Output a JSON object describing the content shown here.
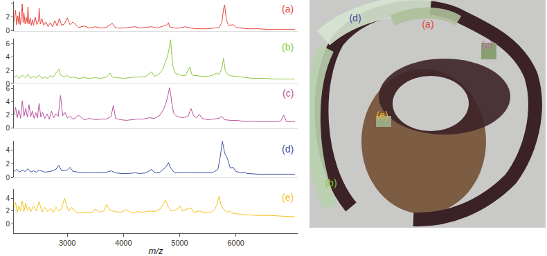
{
  "chart_data": [
    {
      "type": "line",
      "title": "(a)",
      "color": "#e8413c",
      "tick_labels": "y",
      "grid": false,
      "xlim": [
        2050,
        7100
      ],
      "ylim": [
        0,
        4.3
      ],
      "yticks": [
        0,
        2,
        4
      ],
      "x": [
        2050,
        2080,
        2100,
        2120,
        2140,
        2150,
        2165,
        2180,
        2200,
        2215,
        2230,
        2250,
        2270,
        2290,
        2300,
        2320,
        2340,
        2360,
        2380,
        2400,
        2430,
        2460,
        2490,
        2500,
        2520,
        2550,
        2580,
        2620,
        2660,
        2700,
        2740,
        2780,
        2820,
        2860,
        2900,
        2950,
        3000,
        3050,
        3100,
        3200,
        3300,
        3400,
        3500,
        3600,
        3700,
        3800,
        3850,
        3900,
        4000,
        4100,
        4200,
        4300,
        4400,
        4500,
        4600,
        4700,
        4780,
        4800,
        4820,
        4900,
        5000,
        5100,
        5200,
        5300,
        5400,
        5500,
        5600,
        5700,
        5750,
        5780,
        5800,
        5830,
        5870,
        5950,
        6000,
        6100,
        6200,
        6400,
        6600,
        6800,
        7000,
        7050
      ],
      "values": [
        1.2,
        3.0,
        0.9,
        2.2,
        1.0,
        2.8,
        0.9,
        1.8,
        3.9,
        1.2,
        2.6,
        1.0,
        2.0,
        1.1,
        3.5,
        1.0,
        1.9,
        0.8,
        1.6,
        0.8,
        2.0,
        0.9,
        1.5,
        3.3,
        1.0,
        1.8,
        0.8,
        1.3,
        0.6,
        1.2,
        0.6,
        1.5,
        0.7,
        1.8,
        0.8,
        1.0,
        1.9,
        0.9,
        1.3,
        0.5,
        0.7,
        0.4,
        0.6,
        0.4,
        0.5,
        1.1,
        0.5,
        0.4,
        0.4,
        0.5,
        0.6,
        0.4,
        0.5,
        0.6,
        0.4,
        0.7,
        0.9,
        1.2,
        0.6,
        0.4,
        0.4,
        0.6,
        0.4,
        0.3,
        0.3,
        0.3,
        0.4,
        0.5,
        1.2,
        3.2,
        3.8,
        1.6,
        0.8,
        0.9,
        0.5,
        0.4,
        0.3,
        0.3,
        0.2,
        0.2,
        0.2,
        0.2
      ]
    },
    {
      "type": "line",
      "title": "(b)",
      "color": "#8cc63f",
      "tick_labels": "y",
      "grid": false,
      "xlim": [
        2050,
        7100
      ],
      "ylim": [
        0,
        6.8
      ],
      "yticks": [
        0,
        2,
        4,
        6
      ],
      "x": [
        2050,
        2100,
        2150,
        2200,
        2250,
        2300,
        2350,
        2400,
        2450,
        2500,
        2550,
        2600,
        2650,
        2700,
        2750,
        2800,
        2850,
        2880,
        2920,
        2960,
        3000,
        3050,
        3100,
        3200,
        3300,
        3400,
        3500,
        3600,
        3700,
        3760,
        3800,
        3900,
        4000,
        4100,
        4200,
        4300,
        4400,
        4500,
        4550,
        4600,
        4650,
        4700,
        4750,
        4780,
        4810,
        4840,
        4860,
        4880,
        4920,
        5000,
        5100,
        5180,
        5220,
        5300,
        5400,
        5500,
        5600,
        5650,
        5700,
        5750,
        5780,
        5810,
        5850,
        5900,
        6000,
        6150,
        6200,
        6300,
        6500,
        6700,
        6900,
        7050
      ],
      "values": [
        1.0,
        1.2,
        0.8,
        1.3,
        0.9,
        1.4,
        0.8,
        1.1,
        0.9,
        1.3,
        0.8,
        1.0,
        0.8,
        1.2,
        1.0,
        1.6,
        2.2,
        1.3,
        1.1,
        1.0,
        1.3,
        0.9,
        1.0,
        0.8,
        0.9,
        0.8,
        0.9,
        0.8,
        1.0,
        1.6,
        1.0,
        0.9,
        0.8,
        0.9,
        1.0,
        1.0,
        1.1,
        1.8,
        1.1,
        1.3,
        1.6,
        2.2,
        3.4,
        4.0,
        5.2,
        6.6,
        4.2,
        2.6,
        1.6,
        1.3,
        1.2,
        2.5,
        1.3,
        1.2,
        1.1,
        1.1,
        1.3,
        1.6,
        1.4,
        2.3,
        3.8,
        2.0,
        1.4,
        1.2,
        1.1,
        1.0,
        0.9,
        0.8,
        0.8,
        0.7,
        0.7,
        0.7
      ]
    },
    {
      "type": "line",
      "title": "(c)",
      "color": "#b8509e",
      "tick_labels": "y",
      "grid": false,
      "xlim": [
        2050,
        7100
      ],
      "ylim": [
        0,
        6.6
      ],
      "yticks": [
        0,
        2,
        4,
        6
      ],
      "x": [
        2050,
        2080,
        2110,
        2140,
        2170,
        2200,
        2230,
        2260,
        2290,
        2320,
        2350,
        2380,
        2410,
        2440,
        2470,
        2500,
        2530,
        2560,
        2600,
        2640,
        2680,
        2720,
        2760,
        2800,
        2840,
        2880,
        2920,
        2960,
        3000,
        3050,
        3100,
        3150,
        3200,
        3300,
        3400,
        3500,
        3600,
        3700,
        3780,
        3820,
        3860,
        3950,
        4050,
        4150,
        4250,
        4350,
        4450,
        4550,
        4650,
        4720,
        4760,
        4790,
        4820,
        4840,
        4870,
        4900,
        4950,
        5050,
        5150,
        5200,
        5250,
        5300,
        5350,
        5400,
        5500,
        5600,
        5700,
        5750,
        5800,
        5900,
        6000,
        6100,
        6200,
        6300,
        6400,
        6500,
        6600,
        6700,
        6800,
        6850,
        6900,
        7050
      ],
      "values": [
        2.0,
        3.2,
        1.6,
        2.8,
        1.5,
        4.2,
        1.8,
        3.0,
        1.7,
        3.6,
        1.8,
        2.6,
        1.5,
        2.4,
        1.6,
        3.8,
        1.7,
        2.4,
        1.5,
        2.2,
        1.4,
        2.6,
        1.6,
        2.2,
        1.8,
        5.0,
        1.9,
        2.4,
        1.6,
        1.8,
        1.4,
        1.6,
        2.0,
        1.3,
        1.5,
        1.3,
        1.4,
        1.4,
        1.8,
        3.5,
        1.5,
        1.3,
        1.2,
        1.3,
        1.4,
        1.4,
        1.6,
        1.5,
        2.0,
        3.0,
        4.0,
        5.0,
        6.2,
        5.2,
        3.2,
        2.2,
        1.8,
        1.6,
        1.8,
        3.0,
        1.9,
        1.6,
        2.1,
        1.5,
        1.3,
        1.4,
        1.5,
        1.8,
        1.3,
        1.2,
        1.2,
        1.1,
        1.0,
        1.1,
        1.0,
        1.0,
        1.0,
        1.0,
        1.1,
        2.0,
        1.0,
        1.0
      ]
    },
    {
      "type": "line",
      "title": "(d)",
      "color": "#3a4fa0",
      "tick_labels": "y",
      "grid": false,
      "xlim": [
        2050,
        7100
      ],
      "ylim": [
        0,
        5.4
      ],
      "yticks": [
        0,
        2,
        4
      ],
      "x": [
        2050,
        2100,
        2150,
        2200,
        2250,
        2300,
        2350,
        2400,
        2450,
        2500,
        2600,
        2700,
        2800,
        2850,
        2900,
        3000,
        3050,
        3100,
        3200,
        3300,
        3400,
        3500,
        3600,
        3700,
        3780,
        3850,
        3950,
        4100,
        4200,
        4300,
        4400,
        4500,
        4550,
        4650,
        4720,
        4760,
        4800,
        4840,
        4900,
        5000,
        5100,
        5200,
        5300,
        5400,
        5500,
        5600,
        5680,
        5720,
        5760,
        5800,
        5850,
        5900,
        5950,
        6000,
        6100,
        6150,
        6200,
        6400,
        6600,
        6800,
        7050
      ],
      "values": [
        0.9,
        1.2,
        0.8,
        1.1,
        0.9,
        1.3,
        0.8,
        1.0,
        0.8,
        1.1,
        0.8,
        0.9,
        1.2,
        1.8,
        1.0,
        1.1,
        1.5,
        0.9,
        0.8,
        0.7,
        0.7,
        0.7,
        0.7,
        0.8,
        1.0,
        0.7,
        0.6,
        0.6,
        0.7,
        0.6,
        0.7,
        1.2,
        0.7,
        0.8,
        1.3,
        1.6,
        2.2,
        1.4,
        0.8,
        0.7,
        0.7,
        0.8,
        0.7,
        0.7,
        0.7,
        0.8,
        1.2,
        3.0,
        5.3,
        3.6,
        2.8,
        1.4,
        1.5,
        0.9,
        0.7,
        0.8,
        0.6,
        0.5,
        0.5,
        0.5,
        0.5
      ]
    },
    {
      "type": "line",
      "title": "(e)",
      "color": "#f2c21b",
      "grid": false,
      "xlabel": "m/z",
      "xlim": [
        2050,
        7100
      ],
      "xticks": [
        3000,
        4000,
        5000,
        6000
      ],
      "ylim": [
        -1.5,
        5.4
      ],
      "yticks": [
        0,
        2,
        4
      ],
      "x": [
        2050,
        2080,
        2110,
        2140,
        2170,
        2200,
        2230,
        2260,
        2290,
        2320,
        2350,
        2400,
        2450,
        2500,
        2550,
        2600,
        2650,
        2700,
        2750,
        2800,
        2850,
        2900,
        2950,
        2980,
        3020,
        3080,
        3150,
        3250,
        3350,
        3450,
        3500,
        3580,
        3650,
        3700,
        3760,
        3850,
        3950,
        4050,
        4150,
        4250,
        4350,
        4450,
        4550,
        4650,
        4700,
        4750,
        4800,
        4850,
        4950,
        5000,
        5050,
        5100,
        5200,
        5250,
        5350,
        5450,
        5550,
        5620,
        5660,
        5700,
        5740,
        5800,
        5850,
        5900,
        5950,
        6050,
        6200,
        6400,
        6600,
        6800,
        7050
      ],
      "values": [
        2.2,
        3.4,
        1.8,
        2.8,
        2.0,
        3.6,
        1.9,
        3.2,
        2.1,
        2.6,
        1.9,
        2.8,
        2.0,
        3.5,
        1.8,
        2.6,
        1.9,
        2.4,
        1.8,
        2.6,
        2.0,
        2.4,
        4.0,
        3.2,
        2.0,
        2.6,
        1.8,
        1.7,
        1.8,
        1.8,
        2.3,
        1.8,
        2.0,
        3.0,
        2.1,
        1.9,
        1.8,
        2.2,
        1.7,
        1.9,
        1.8,
        2.0,
        1.9,
        2.3,
        3.0,
        3.7,
        2.6,
        2.0,
        2.2,
        2.8,
        2.0,
        2.2,
        2.5,
        1.8,
        2.0,
        1.7,
        1.8,
        2.2,
        3.0,
        4.3,
        2.8,
        2.1,
        1.8,
        2.0,
        1.6,
        1.5,
        1.4,
        1.3,
        1.3,
        1.2,
        1.1
      ]
    }
  ],
  "image": {
    "labels": [
      {
        "text": "(a)",
        "color": "#e8413c"
      },
      {
        "text": "(b)",
        "color": "#8cc63f"
      },
      {
        "text": "(c)",
        "color": "#c060b0"
      },
      {
        "text": "(d)",
        "color": "#3a4fa0"
      },
      {
        "text": "(e)",
        "color": "#f2b01b"
      }
    ]
  }
}
